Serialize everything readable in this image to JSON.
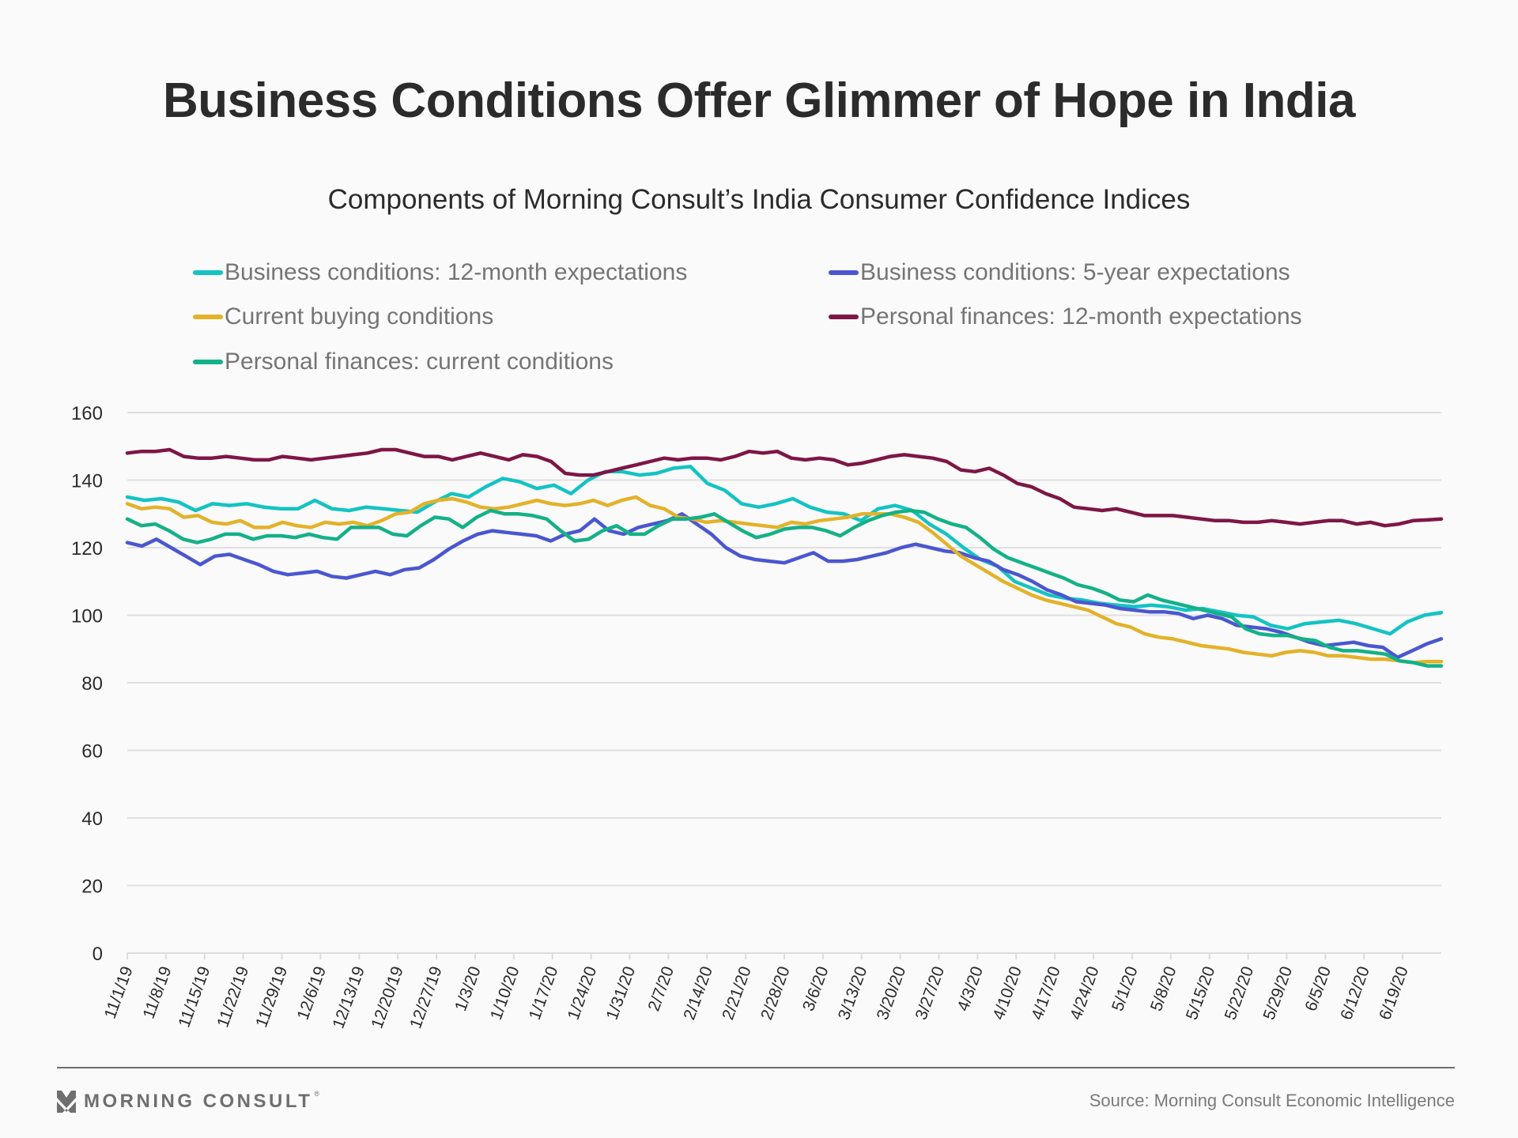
{
  "title": "Business Conditions Offer Glimmer of Hope in India",
  "subtitle": "Components of Morning Consult’s India Consumer Confidence Indices",
  "footer": {
    "logo_text": "MORNING CONSULT",
    "logo_icon": "morning-consult-chevron-icon",
    "source": "Source: Morning Consult Economic Intelligence"
  },
  "chart_data": {
    "type": "line",
    "title": "Components of Morning Consult’s India Consumer Confidence Indices",
    "xlabel": "",
    "ylabel": "",
    "ylim": [
      0,
      160
    ],
    "yticks": [
      0,
      20,
      40,
      60,
      80,
      100,
      120,
      140,
      160
    ],
    "grid": true,
    "legend_position": "top",
    "x_unit": "days since 11/1/19 (sampled every 3.5 days)",
    "x_tick_labels": [
      "11/1/19",
      "11/8/19",
      "11/15/19",
      "11/22/19",
      "11/29/19",
      "12/6/19",
      "12/13/19",
      "12/20/19",
      "12/27/19",
      "1/3/20",
      "1/10/20",
      "1/17/20",
      "1/24/20",
      "1/31/20",
      "2/7/20",
      "2/14/20",
      "2/21/20",
      "2/28/20",
      "3/6/20",
      "3/13/20",
      "3/20/20",
      "3/27/20",
      "4/3/20",
      "4/10/20",
      "4/17/20",
      "4/24/20",
      "5/1/20",
      "5/8/20",
      "5/15/20",
      "5/22/20",
      "5/29/20",
      "6/5/20",
      "6/12/20",
      "6/19/20"
    ],
    "x_end_days": 238,
    "series": [
      {
        "name": "Business conditions: 12-month expectations",
        "color": "#14c3c3",
        "values": [
          135,
          134,
          134.5,
          133.5,
          131,
          133,
          132.5,
          133,
          132,
          131.5,
          131.5,
          134,
          131.5,
          131,
          132,
          131.5,
          131,
          130.5,
          133.5,
          136,
          135,
          138,
          140.5,
          139.5,
          137.5,
          138.5,
          136,
          140,
          142.5,
          142.5,
          141.5,
          142,
          143.5,
          144,
          139,
          137,
          133,
          132,
          133,
          134.5,
          132,
          130.5,
          130,
          128,
          131.5,
          132.5,
          131,
          127,
          124,
          120,
          116.5,
          114.5,
          110,
          108,
          106,
          105,
          104.5,
          103.5,
          103,
          102.5,
          103,
          102.5,
          101.5,
          102,
          101,
          100,
          99.5,
          97,
          96,
          97.5,
          98,
          98.5,
          97.5,
          96,
          94.5,
          98,
          100,
          100.8
        ]
      },
      {
        "name": "Business conditions: 5-year expectations",
        "color": "#4a57d0",
        "values": [
          121.5,
          120.5,
          122.5,
          120,
          117.5,
          115,
          117.5,
          118,
          116.5,
          115,
          113,
          112,
          112.5,
          113,
          111.5,
          111,
          112,
          113,
          112,
          113.5,
          114,
          116.5,
          119.5,
          122,
          124,
          125,
          124.5,
          124,
          123.5,
          122,
          124,
          125,
          128.5,
          125,
          124,
          126,
          127,
          128,
          130,
          127,
          124,
          120,
          117.5,
          116.5,
          116,
          115.5,
          117,
          118.5,
          116,
          116,
          116.5,
          117.5,
          118.5,
          120,
          121,
          120,
          119,
          118.5,
          117,
          116,
          113.5,
          112,
          110,
          107.5,
          106,
          104,
          103.5,
          103,
          102,
          101.5,
          101,
          101,
          100.5,
          99,
          100,
          99,
          97,
          96.5,
          96,
          95,
          93.5,
          92,
          91,
          91.5,
          92,
          91,
          90.5,
          87.5,
          89.5,
          91.5,
          93
        ]
      },
      {
        "name": "Current buying conditions",
        "color": "#e3b22a",
        "values": [
          133,
          131.5,
          132,
          131.5,
          129,
          129.5,
          127.5,
          127,
          128,
          126,
          126,
          127.5,
          126.5,
          126,
          127.5,
          127,
          127.5,
          126.5,
          128,
          130,
          130.5,
          133,
          134,
          134.5,
          133.5,
          132,
          131.5,
          132,
          133,
          134,
          133,
          132.5,
          133,
          134,
          132.5,
          134,
          135,
          132.5,
          131.5,
          129,
          128.5,
          127.5,
          128,
          127.5,
          127,
          126.5,
          126,
          127.5,
          127,
          128,
          128.5,
          129,
          130,
          130,
          130,
          129,
          127.5,
          124.5,
          121,
          117.5,
          115,
          112.5,
          110,
          108,
          106,
          104.5,
          103.5,
          102.5,
          101.5,
          99.5,
          97.5,
          96.5,
          94.5,
          93.5,
          93,
          92,
          91,
          90.5,
          90,
          89,
          88.5,
          88,
          89,
          89.5,
          89,
          88,
          88,
          87.5,
          87,
          87,
          86.5,
          86,
          86.3,
          86.3
        ]
      },
      {
        "name": "Personal finances: 12-month expectations",
        "color": "#7e1646",
        "values": [
          148,
          148.5,
          148.5,
          149,
          147,
          146.5,
          146.5,
          147,
          146.5,
          146,
          146,
          147,
          146.5,
          146,
          146.5,
          147,
          147.5,
          148,
          149,
          149,
          148,
          147,
          147,
          146,
          147,
          148,
          147,
          146,
          147.5,
          147,
          145.5,
          142,
          141.5,
          141.5,
          142.5,
          143.5,
          144.5,
          145.5,
          146.5,
          146,
          146.5,
          146.5,
          146,
          147,
          148.5,
          148,
          148.5,
          146.5,
          146,
          146.5,
          146,
          144.5,
          145,
          146,
          147,
          147.5,
          147,
          146.5,
          145.5,
          143,
          142.5,
          143.5,
          141.5,
          139,
          138,
          136,
          134.5,
          132,
          131.5,
          131,
          131.5,
          130.5,
          129.5,
          129.5,
          129.5,
          129,
          128.5,
          128,
          128,
          127.5,
          127.5,
          128,
          127.5,
          127,
          127.5,
          128,
          128,
          127,
          127.5,
          126.5,
          127,
          128,
          128.2,
          128.5
        ]
      },
      {
        "name": "Personal finances: current conditions",
        "color": "#14b188",
        "values": [
          128.5,
          126.5,
          127,
          125,
          122.5,
          121.5,
          122.5,
          124,
          124,
          122.5,
          123.5,
          123.5,
          123,
          124,
          123,
          122.5,
          126,
          126,
          126,
          124,
          123.5,
          126.5,
          129,
          128.5,
          126,
          129,
          131,
          130,
          130,
          129.5,
          128.5,
          125,
          122,
          122.5,
          125,
          126.5,
          124,
          124,
          126.5,
          128.5,
          128.5,
          129,
          130,
          127.5,
          125,
          123,
          124,
          125.5,
          126,
          126,
          125,
          123.5,
          126,
          128,
          129.5,
          130.5,
          131,
          130.5,
          128.5,
          127,
          126,
          123,
          119.5,
          117,
          115.5,
          114,
          112.5,
          111,
          109,
          108,
          106.5,
          104.5,
          104,
          106,
          104.5,
          103.5,
          102.5,
          101.5,
          100.5,
          99.5,
          96,
          94.5,
          94,
          94,
          93,
          92.5,
          90.5,
          89.5,
          89.5,
          89,
          88.5,
          86.5,
          86,
          85,
          85
        ]
      }
    ]
  }
}
